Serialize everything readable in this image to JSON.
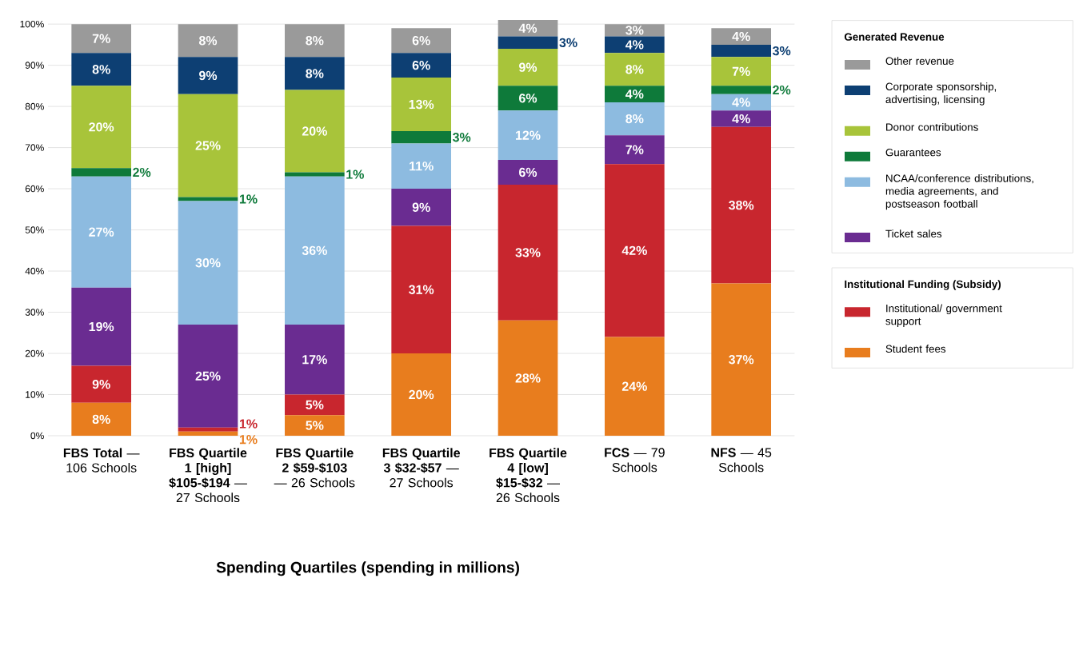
{
  "chart_data": {
    "type": "bar",
    "stacked": true,
    "xlabel": "Spending Quartiles (spending in millions)",
    "legend_title": "Generated Revenue",
    "annotations": [
      "Institutional Funding (Subsidy)"
    ],
    "categories": [
      "**FBS Total** — 106 Schools",
      "**FBS Quartile 1 [high] $105-$194** — 27 Schools",
      "**FBS Quartile 2 $59-$103** — 26 Schools",
      "**FBS Quartile 3 $32-$57** — 27 Schools",
      "**FBS Quartile 4 [low] $15-$32** — 26 Schools",
      "**FCS** — 79 Schools",
      "**NFS** — 45 Schools"
    ],
    "ylim": [
      0,
      101
    ],
    "yticks": [
      {
        "value": 0,
        "label": "0%"
      },
      {
        "value": 10,
        "label": "10%"
      },
      {
        "value": 20,
        "label": "20%"
      },
      {
        "value": 30,
        "label": "30%"
      },
      {
        "value": 40,
        "label": "40%"
      },
      {
        "value": 50,
        "label": "50%"
      },
      {
        "value": 60,
        "label": "60%"
      },
      {
        "value": 70,
        "label": "70%"
      },
      {
        "value": 80,
        "label": "80%"
      },
      {
        "value": 90,
        "label": "90%"
      },
      {
        "value": 100,
        "label": "100%"
      }
    ],
    "grid": "y",
    "legend": "right",
    "series": [
      {
        "name": "Student fees",
        "color": "#e87d1e",
        "values": [
          8,
          1,
          5,
          20,
          28,
          24,
          37
        ],
        "value_labels": [
          "8%",
          "1%",
          "5%",
          "20%",
          "28%",
          "24%",
          "37%"
        ]
      },
      {
        "name": "Institutional/ government support",
        "color": "#c8262e",
        "values": [
          9,
          1,
          5,
          31,
          33,
          42,
          38
        ],
        "value_labels": [
          "9%",
          "1%",
          "5%",
          "31%",
          "33%",
          "42%",
          "38%"
        ]
      },
      {
        "name": "Ticket sales",
        "color": "#6a2c91",
        "values": [
          19,
          25,
          17,
          9,
          6,
          7,
          4
        ],
        "value_labels": [
          "19%",
          "25%",
          "17%",
          "9%",
          "6%",
          "7%",
          "4%"
        ]
      },
      {
        "name": "NCAA/conference distributions, media agreements, and postseason football",
        "color": "#8dbbe0",
        "values": [
          27,
          30,
          36,
          11,
          12,
          8,
          4
        ],
        "value_labels": [
          "27%",
          "30%",
          "36%",
          "11%",
          "12%",
          "8%",
          "4%"
        ]
      },
      {
        "name": "Guarantees",
        "color": "#0e7a3a",
        "values": [
          2,
          1,
          1,
          3,
          6,
          4,
          2
        ],
        "value_labels": [
          "2%",
          "1%",
          "1%",
          "3%",
          "6%",
          "4%",
          "2%"
        ]
      },
      {
        "name": "Donor contributions",
        "color": "#a8c43a",
        "values": [
          20,
          25,
          20,
          13,
          9,
          8,
          7
        ],
        "value_labels": [
          "20%",
          "25%",
          "20%",
          "13%",
          "9%",
          "8%",
          "7%"
        ]
      },
      {
        "name": "Corporate sponsorship, advertising, licensing",
        "color": "#0d3f73",
        "values": [
          8,
          9,
          8,
          6,
          3,
          4,
          3
        ],
        "value_labels": [
          "8%",
          "9%",
          "8%",
          "6%",
          "3%",
          "4%",
          "3%"
        ]
      },
      {
        "name": "Other revenue",
        "color": "#9a9a9a",
        "values": [
          7,
          8,
          8,
          6,
          4,
          3,
          4
        ],
        "value_labels": [
          "7%",
          "8%",
          "8%",
          "6%",
          "4%",
          "3%",
          "4%"
        ]
      }
    ]
  }
}
